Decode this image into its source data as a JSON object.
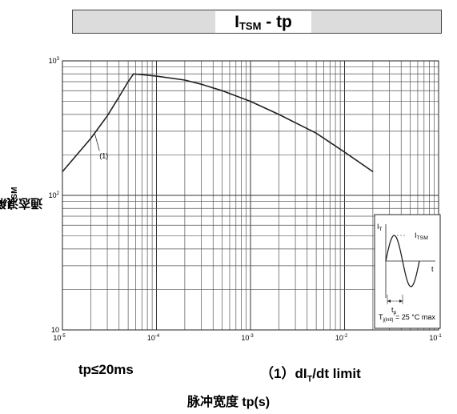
{
  "chart_data": {
    "type": "line",
    "title_main": "I",
    "title_sub": "TSM",
    "title_rest": " - tp",
    "ylabel_main": "通态浪涌电流 I",
    "ylabel_sub": "TSM",
    "ylabel_rest": "(A)",
    "xlabel": "脉冲宽度 tp(s)",
    "x_scale": "log",
    "y_scale": "log",
    "xlim": [
      1e-05,
      0.1
    ],
    "ylim": [
      10,
      1000
    ],
    "x_ticks": [
      {
        "base": "10",
        "exp": "-5"
      },
      {
        "base": "10",
        "exp": "-4"
      },
      {
        "base": "10",
        "exp": "-3"
      },
      {
        "base": "10",
        "exp": "-2"
      },
      {
        "base": "10",
        "exp": "-1"
      }
    ],
    "y_ticks": [
      {
        "base": "10",
        "exp": ""
      },
      {
        "base": "10",
        "exp": "2"
      },
      {
        "base": "10",
        "exp": "3"
      }
    ],
    "grid": true,
    "series": [
      {
        "label": "(1)",
        "x": [
          1e-05,
          2e-05,
          3e-05,
          4e-05,
          5e-05,
          5.7e-05,
          7e-05,
          0.0001,
          0.0002,
          0.0003,
          0.0005,
          0.001,
          0.002,
          0.005,
          0.01,
          0.02
        ],
        "y": [
          150,
          265,
          390,
          540,
          700,
          800,
          790,
          770,
          720,
          670,
          600,
          500,
          400,
          290,
          210,
          150
        ]
      }
    ],
    "annotations": {
      "note_left": "tp≤20ms",
      "note_right_prefix": "（1）dI",
      "note_right_sub": "T",
      "note_right_suffix": "/dt limit"
    },
    "inset": {
      "it_label": "I",
      "it_sub": "T",
      "itsm_label": "I",
      "itsm_sub": "TSM",
      "t_label": "t",
      "tp_label": "t",
      "tp_sub": "p",
      "tj_label": "T",
      "tj_sub": "j(init)",
      "tj_rest": " = 25 °C max"
    }
  }
}
